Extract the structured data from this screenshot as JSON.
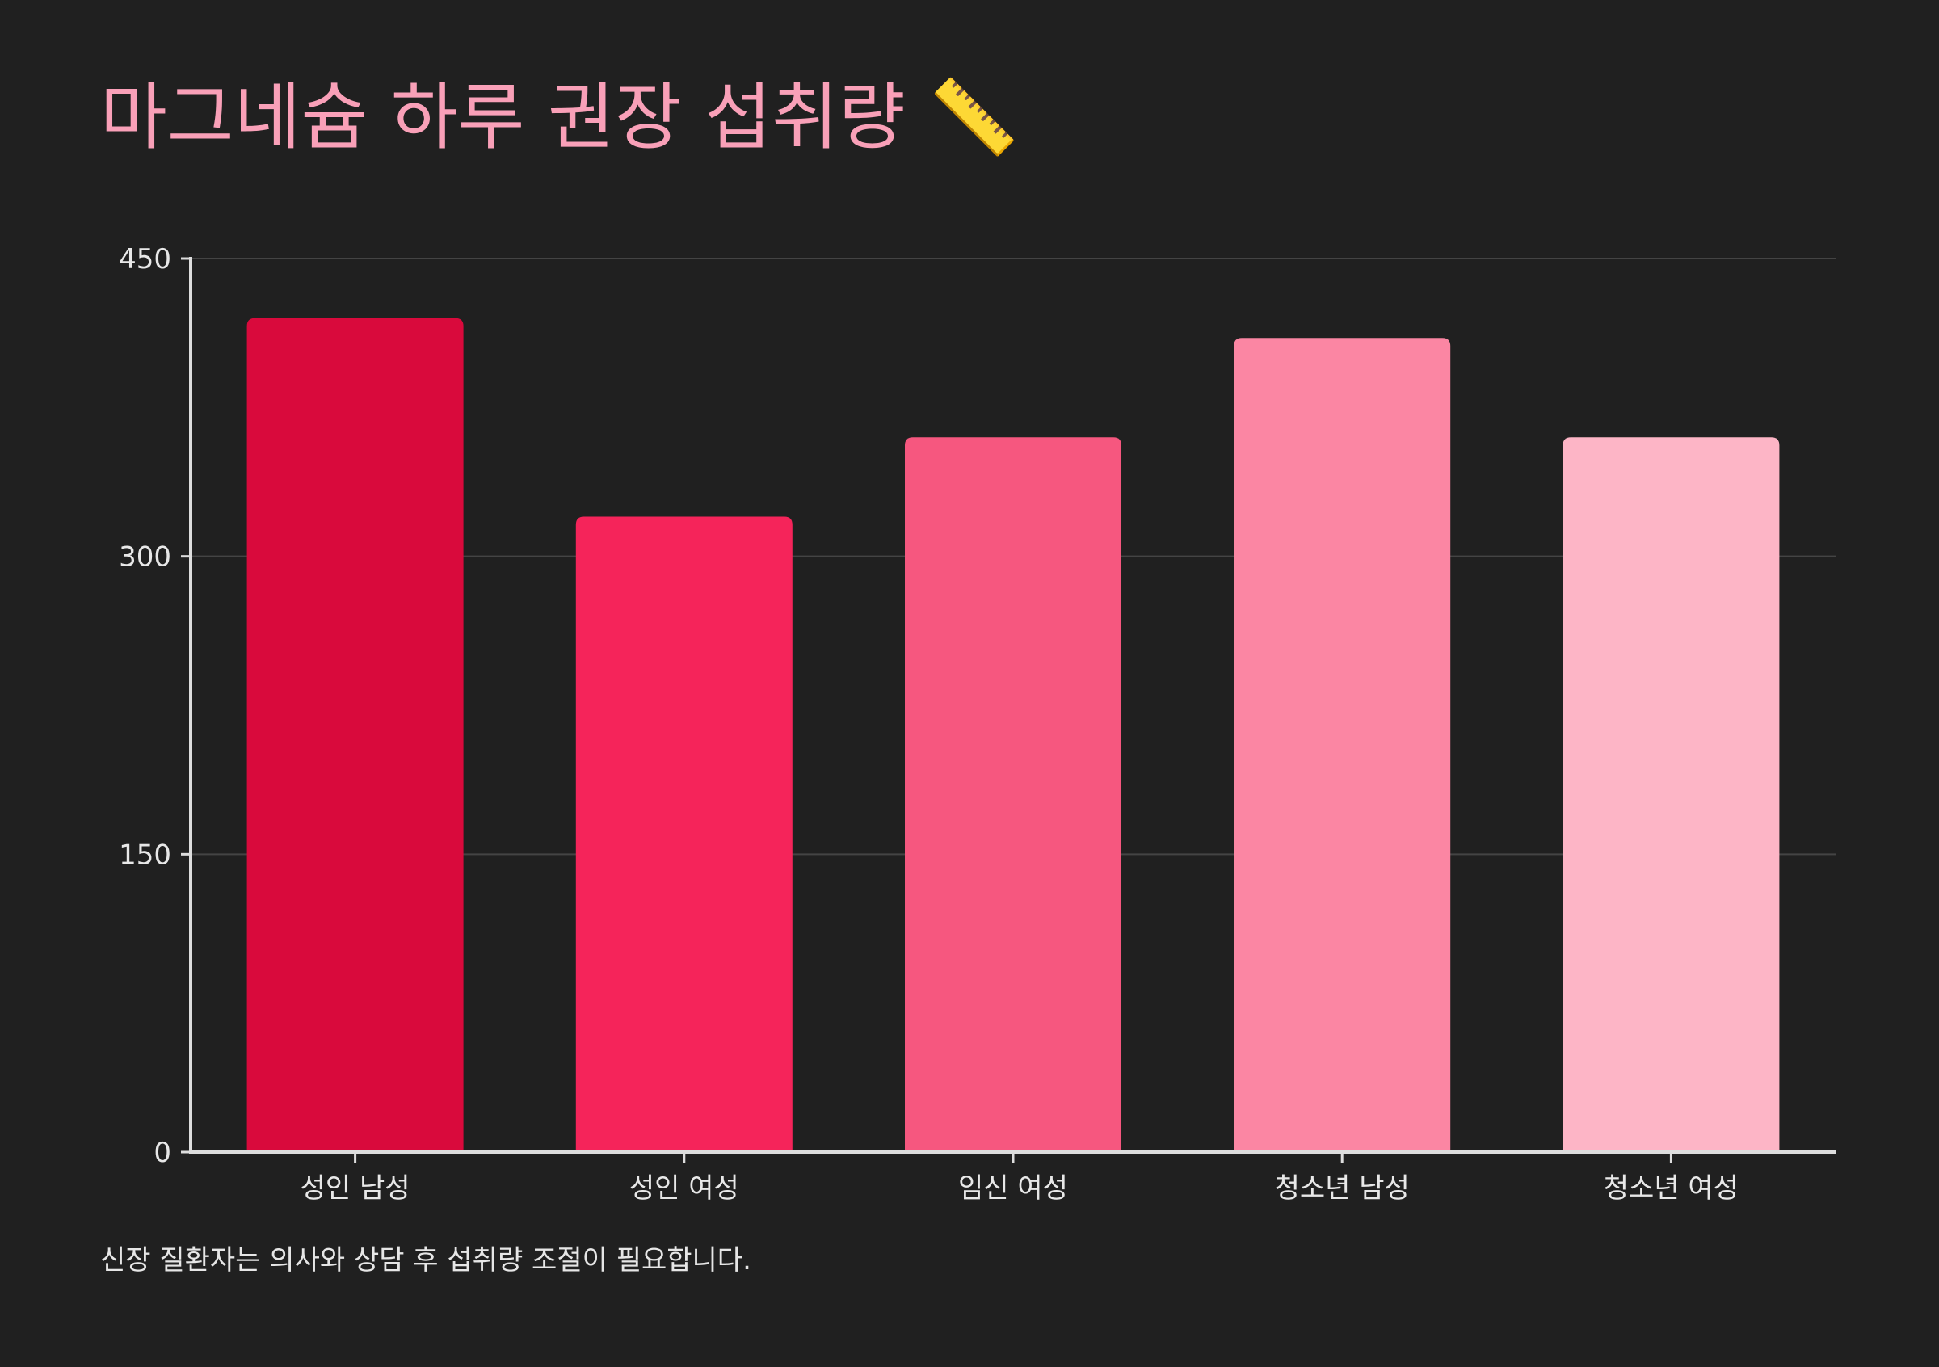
{
  "chart_data": {
    "type": "bar",
    "title": "마그네슘 하루 권장 섭취량 📏",
    "categories": [
      "성인 남성",
      "성인 여성",
      "임신 여성",
      "청소년 남성",
      "청소년 여성"
    ],
    "values": [
      420,
      320,
      360,
      410,
      360
    ],
    "colors": [
      "#d90a3c",
      "#f5245a",
      "#f6577f",
      "#fb86a3",
      "#fdb5c6"
    ],
    "xlabel": "",
    "ylabel": "",
    "ylim": [
      0,
      450
    ],
    "yticks": [
      0,
      150,
      300,
      450
    ],
    "grid": true,
    "legend": "none"
  },
  "footnote": "신장 질환자는 의사와 상담 후 섭취량 조절이 필요합니다.",
  "style": {
    "background": "#202020",
    "title_color": "#f9a0b8",
    "grid_color": "#444444",
    "axis_color": "#dddddd",
    "text_color": "#e8e8e8"
  }
}
